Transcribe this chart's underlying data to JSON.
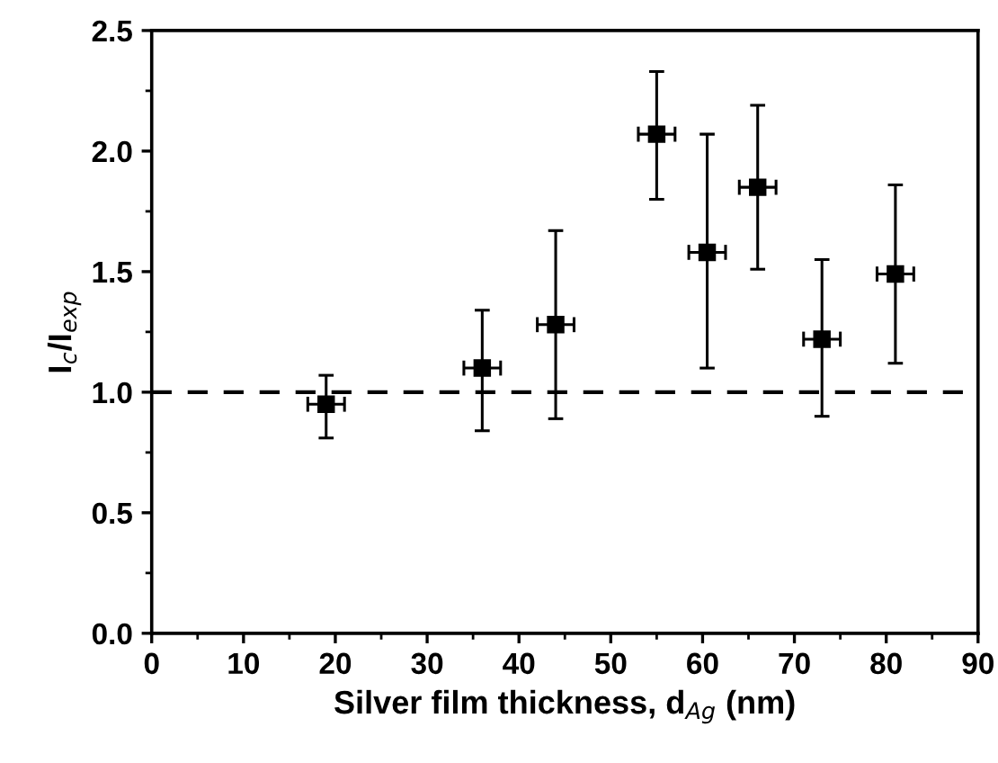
{
  "chart_data": {
    "type": "scatter",
    "xlabel": "Silver film thickness, d$_{Ag}$ (nm)",
    "ylabel": "I$_{c}$/I$_{exp}$",
    "x": [
      19,
      36,
      44,
      55,
      60.5,
      66,
      73,
      81
    ],
    "series": [
      {
        "color": "#000000",
        "values": [
          0.95,
          1.1,
          1.28,
          2.07,
          1.58,
          1.85,
          1.22,
          1.49
        ],
        "errors": [
          [
            0.81,
            1.07
          ],
          [
            0.84,
            1.34
          ],
          [
            0.89,
            1.67
          ],
          [
            1.8,
            2.33
          ],
          [
            1.1,
            2.07
          ],
          [
            1.51,
            2.19
          ],
          [
            0.9,
            1.55
          ],
          [
            1.12,
            1.86
          ]
        ],
        "xerrors": [
          2,
          2,
          2,
          2,
          2,
          2,
          2,
          2
        ]
      }
    ],
    "marker": "square",
    "xlim": [
      0,
      90
    ],
    "ylim": [
      0,
      2.5
    ],
    "xticks": [
      0,
      10,
      20,
      30,
      40,
      50,
      60,
      70,
      80,
      90
    ],
    "yticks": [
      {
        "value": 0,
        "label": "0.0"
      },
      {
        "value": 0.5,
        "label": "0.5"
      },
      {
        "value": 1,
        "label": "1.0"
      },
      {
        "value": 1.5,
        "label": "1.5"
      },
      {
        "value": 2,
        "label": "2.0"
      },
      {
        "value": 2.5,
        "label": "2.5"
      }
    ],
    "ref_lines": [
      {
        "axis": "y",
        "value": 1,
        "line_style": "dashed",
        "color": "#000000"
      }
    ],
    "grid": false,
    "legend": false
  }
}
